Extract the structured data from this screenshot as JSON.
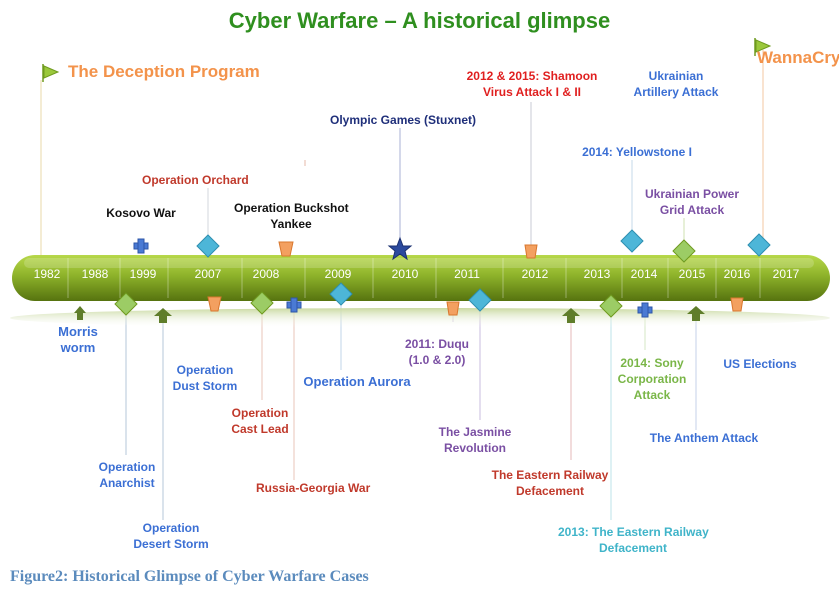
{
  "title": "Cyber Warfare – A historical glimpse",
  "caption": "Figure2: Historical Glimpse of Cyber Warfare Cases",
  "colors": {
    "title": "#2f8f1f",
    "caption": "#5b8bbd",
    "bar_top": "#a6c936",
    "bar_bottom": "#5f7d12",
    "blue": "#3b6fd4",
    "orange": "#f3934b",
    "red": "#c0392b",
    "bright_red": "#e02020",
    "navy": "#1f2f7a",
    "purple": "#7a4fa3",
    "green": "#7ab648",
    "teal": "#3fb4c9",
    "black": "#111111"
  },
  "years": [
    "1982",
    "1988",
    "1999",
    "2007",
    "2008",
    "2009",
    "2010",
    "2011",
    "2012",
    "2013",
    "2014",
    "2015",
    "2016",
    "2017"
  ],
  "events": {
    "deception": "The Deception Program",
    "wannacry": "WannaCry",
    "shamoon_1": "2012 & 2015: Shamoon",
    "shamoon_2": "Virus Attack I & II",
    "ukr_art_1": "Ukrainian",
    "ukr_art_2": "Artillery Attack",
    "olympic": "Olympic Games (Stuxnet)",
    "yellowstone": "2014: Yellowstone I",
    "orchard": "Operation Orchard",
    "ukr_power_1": "Ukrainian Power",
    "ukr_power_2": "Grid Attack",
    "kosovo": "Kosovo War",
    "buckshot_1": "Operation Buckshot",
    "buckshot_2": "Yankee",
    "morris_1": "Morris",
    "morris_2": "worm",
    "duststorm_1": "Operation",
    "duststorm_2": "Dust Storm",
    "aurora": "Operation Aurora",
    "duqu_1": "2011: Duqu",
    "duqu_2": "(1.0 & 2.0)",
    "sony_1": "2014: Sony",
    "sony_2": "Corporation",
    "sony_3": "Attack",
    "uselections": "US Elections",
    "castlead_1": "Operation",
    "castlead_2": "Cast Lead",
    "jasmine_1": "The Jasmine",
    "jasmine_2": "Revolution",
    "anthem": "The Anthem Attack",
    "anarchist_1": "Operation",
    "anarchist_2": "Anarchist",
    "railway_1": "The Eastern Railway",
    "railway_2": "Defacement",
    "russia_georgia": "Russia-Georgia War",
    "desertstorm_1": "Operation",
    "desertstorm_2": "Desert Storm",
    "railway2013_1": "2013: The Eastern Railway",
    "railway2013_2": "Defacement"
  }
}
